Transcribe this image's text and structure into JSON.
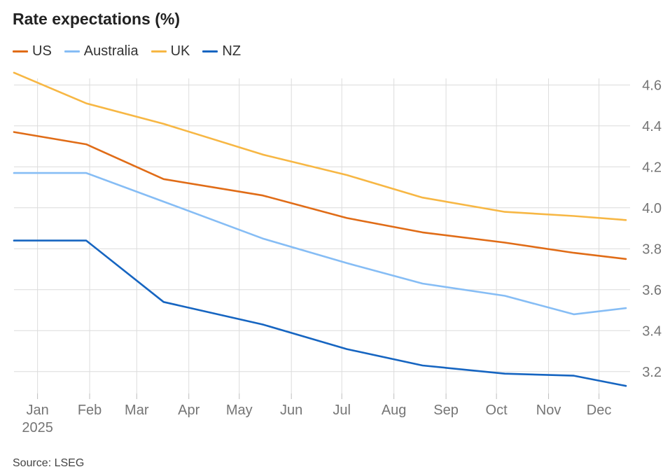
{
  "chart_data": {
    "type": "line",
    "title": "Rate expectations (%)",
    "source": "Source: LSEG",
    "x_ticks": [
      {
        "label": "Jan",
        "sublabel": "2025",
        "x": "2025-01-15"
      },
      {
        "label": "Feb",
        "x": "2025-02-15"
      },
      {
        "label": "Mar",
        "x": "2025-03-15"
      },
      {
        "label": "Apr",
        "x": "2025-04-15"
      },
      {
        "label": "May",
        "x": "2025-05-15"
      },
      {
        "label": "Jun",
        "x": "2025-06-15"
      },
      {
        "label": "Jul",
        "x": "2025-07-15"
      },
      {
        "label": "Aug",
        "x": "2025-08-15"
      },
      {
        "label": "Sep",
        "x": "2025-09-15"
      },
      {
        "label": "Oct",
        "x": "2025-10-15"
      },
      {
        "label": "Nov",
        "x": "2025-11-15"
      },
      {
        "label": "Dec",
        "x": "2025-12-15"
      }
    ],
    "xlim": [
      "2025-01-01",
      "2025-12-31"
    ],
    "y_ticks": [
      3.2,
      3.4,
      3.6,
      3.8,
      4.0,
      4.2,
      4.4,
      4.6
    ],
    "ylim": [
      3.1,
      4.69
    ],
    "y_axis_position": "right",
    "grid": true,
    "legend_position": "top-left",
    "series": [
      {
        "name": "US",
        "color": "#e06c17",
        "x": [
          "2025-01-01",
          "2025-02-13",
          "2025-03-31",
          "2025-05-29",
          "2025-07-18",
          "2025-09-01",
          "2025-10-20",
          "2025-11-30",
          "2025-12-31"
        ],
        "y": [
          4.37,
          4.31,
          4.14,
          4.06,
          3.95,
          3.88,
          3.83,
          3.78,
          3.75
        ]
      },
      {
        "name": "Australia",
        "color": "#86bdf5",
        "x": [
          "2025-01-01",
          "2025-02-13",
          "2025-03-31",
          "2025-05-29",
          "2025-07-18",
          "2025-09-01",
          "2025-10-20",
          "2025-11-30",
          "2025-12-31"
        ],
        "y": [
          4.17,
          4.17,
          4.03,
          3.85,
          3.73,
          3.63,
          3.57,
          3.48,
          3.51
        ]
      },
      {
        "name": "UK",
        "color": "#f7b744",
        "x": [
          "2025-01-01",
          "2025-02-13",
          "2025-03-31",
          "2025-05-29",
          "2025-07-18",
          "2025-09-01",
          "2025-10-20",
          "2025-11-30",
          "2025-12-31"
        ],
        "y": [
          4.66,
          4.51,
          4.41,
          4.26,
          4.16,
          4.05,
          3.98,
          3.96,
          3.94
        ]
      },
      {
        "name": "NZ",
        "color": "#1665c1",
        "x": [
          "2025-01-01",
          "2025-02-13",
          "2025-03-31",
          "2025-05-29",
          "2025-07-18",
          "2025-09-01",
          "2025-10-20",
          "2025-11-30",
          "2025-12-31"
        ],
        "y": [
          3.84,
          3.84,
          3.54,
          3.43,
          3.31,
          3.23,
          3.19,
          3.18,
          3.13
        ]
      }
    ]
  }
}
